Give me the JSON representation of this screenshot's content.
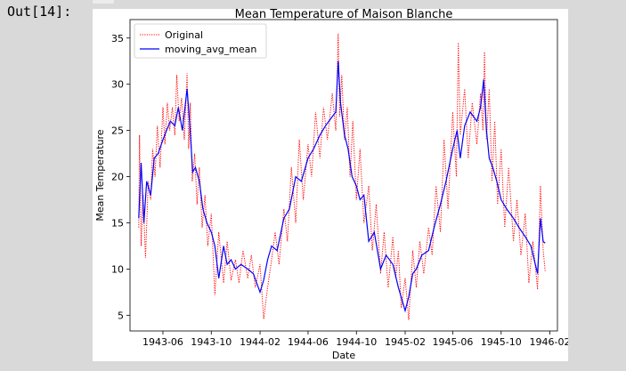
{
  "cell": {
    "output_prompt": "Out[14]:"
  },
  "colors": {
    "original": "#ff0000",
    "moving_avg": "#0000ff"
  },
  "chart_data": {
    "type": "line",
    "title": "Mean Temperature of Maison Blanche",
    "xlabel": "Date",
    "ylabel": "Mean Temperature",
    "xlim": [
      "1943-03-10",
      "1946-02-20"
    ],
    "ylim": [
      3.3,
      37.0
    ],
    "x_ticks": [
      "1943-06",
      "1943-10",
      "1944-02",
      "1944-06",
      "1944-10",
      "1945-02",
      "1945-06",
      "1945-10",
      "1946-02"
    ],
    "y_ticks": [
      5,
      10,
      15,
      20,
      25,
      30,
      35
    ],
    "legend": {
      "position": "upper-left",
      "entries": [
        "Original",
        "moving_avg_mean"
      ]
    },
    "grid": false,
    "series": [
      {
        "name": "Original",
        "style": "dotted",
        "color": "#ff0000",
        "x": [
          "1943-04-01",
          "1943-04-03",
          "1943-04-07",
          "1943-04-12",
          "1943-04-18",
          "1943-04-25",
          "1943-05-01",
          "1943-05-06",
          "1943-05-12",
          "1943-05-18",
          "1943-05-25",
          "1943-06-01",
          "1943-06-06",
          "1943-06-12",
          "1943-06-18",
          "1943-06-25",
          "1943-07-01",
          "1943-07-06",
          "1943-07-12",
          "1943-07-18",
          "1943-07-25",
          "1943-08-01",
          "1943-08-05",
          "1943-08-09",
          "1943-08-14",
          "1943-08-20",
          "1943-08-26",
          "1943-09-01",
          "1943-09-08",
          "1943-09-15",
          "1943-09-22",
          "1943-10-01",
          "1943-10-10",
          "1943-10-20",
          "1943-11-01",
          "1943-11-10",
          "1943-11-20",
          "1943-12-01",
          "1943-12-10",
          "1943-12-20",
          "1944-01-01",
          "1944-01-10",
          "1944-01-20",
          "1944-02-01",
          "1944-02-10",
          "1944-02-20",
          "1944-03-01",
          "1944-03-10",
          "1944-03-20",
          "1944-04-01",
          "1944-04-10",
          "1944-04-20",
          "1944-05-01",
          "1944-05-10",
          "1944-05-20",
          "1944-06-01",
          "1944-06-10",
          "1944-06-20",
          "1944-07-01",
          "1944-07-10",
          "1944-07-20",
          "1944-08-01",
          "1944-08-10",
          "1944-08-16",
          "1944-08-20",
          "1944-08-25",
          "1944-09-01",
          "1944-09-08",
          "1944-09-15",
          "1944-09-22",
          "1944-10-01",
          "1944-10-10",
          "1944-10-20",
          "1944-11-01",
          "1944-11-10",
          "1944-11-20",
          "1944-12-01",
          "1944-12-10",
          "1944-12-20",
          "1945-01-01",
          "1945-01-08",
          "1945-01-15",
          "1945-01-22",
          "1945-02-01",
          "1945-02-10",
          "1945-02-20",
          "1945-03-01",
          "1945-03-10",
          "1945-03-20",
          "1945-04-01",
          "1945-04-10",
          "1945-04-20",
          "1945-05-01",
          "1945-05-10",
          "1945-05-20",
          "1945-06-01",
          "1945-06-10",
          "1945-06-15",
          "1945-06-20",
          "1945-07-01",
          "1945-07-10",
          "1945-07-20",
          "1945-08-01",
          "1945-08-10",
          "1945-08-16",
          "1945-08-20",
          "1945-08-25",
          "1945-09-01",
          "1945-09-08",
          "1945-09-15",
          "1945-09-22",
          "1945-10-01",
          "1945-10-10",
          "1945-10-20",
          "1945-11-01",
          "1945-11-10",
          "1945-11-20",
          "1945-12-01",
          "1945-12-10",
          "1945-12-20",
          "1946-01-01",
          "1946-01-08",
          "1946-01-15",
          "1946-01-20"
        ],
        "values": [
          14.5,
          24.5,
          12.5,
          18.0,
          11.2,
          19.5,
          17.5,
          23.0,
          20.0,
          25.5,
          21.0,
          27.5,
          23.5,
          28.0,
          25.0,
          27.5,
          24.5,
          31.0,
          26.0,
          28.5,
          24.0,
          31.2,
          23.0,
          28.0,
          19.5,
          22.5,
          17.0,
          21.0,
          14.5,
          18.0,
          12.5,
          16.0,
          7.2,
          14.0,
          8.5,
          13.0,
          8.8,
          11.0,
          8.5,
          12.0,
          9.0,
          11.5,
          8.0,
          10.5,
          4.6,
          8.0,
          11.0,
          14.0,
          10.5,
          16.5,
          13.0,
          21.0,
          15.0,
          24.0,
          17.5,
          23.5,
          20.0,
          27.0,
          22.0,
          27.5,
          24.0,
          29.0,
          25.0,
          35.5,
          26.5,
          31.0,
          24.0,
          27.5,
          20.0,
          26.0,
          17.5,
          23.0,
          15.0,
          19.0,
          12.0,
          17.0,
          9.5,
          14.0,
          8.0,
          13.5,
          9.0,
          12.0,
          5.8,
          9.0,
          4.5,
          12.0,
          8.0,
          13.0,
          9.5,
          14.5,
          11.5,
          19.0,
          14.0,
          24.0,
          16.5,
          27.0,
          20.0,
          34.5,
          24.5,
          29.5,
          22.0,
          28.0,
          23.5,
          29.0,
          25.0,
          33.5,
          24.0,
          29.5,
          19.5,
          26.0,
          17.0,
          23.0,
          14.5,
          21.0,
          13.0,
          17.5,
          11.5,
          16.0,
          8.5,
          13.0,
          7.8,
          19.0,
          12.0,
          9.8
        ]
      },
      {
        "name": "moving_avg_mean",
        "style": "solid",
        "color": "#0000ff",
        "x": [
          "1943-04-01",
          "1943-04-07",
          "1943-04-14",
          "1943-04-21",
          "1943-05-01",
          "1943-05-10",
          "1943-05-20",
          "1943-06-01",
          "1943-06-10",
          "1943-06-20",
          "1943-07-01",
          "1943-07-10",
          "1943-07-20",
          "1943-08-01",
          "1943-08-08",
          "1943-08-15",
          "1943-08-22",
          "1943-09-01",
          "1943-09-10",
          "1943-09-20",
          "1943-10-01",
          "1943-10-10",
          "1943-10-20",
          "1943-11-01",
          "1943-11-10",
          "1943-11-20",
          "1943-12-01",
          "1943-12-15",
          "1944-01-01",
          "1944-01-15",
          "1944-02-01",
          "1944-02-10",
          "1944-02-20",
          "1944-03-01",
          "1944-03-15",
          "1944-04-01",
          "1944-04-15",
          "1944-05-01",
          "1944-05-15",
          "1944-06-01",
          "1944-06-15",
          "1944-07-01",
          "1944-07-15",
          "1944-08-01",
          "1944-08-10",
          "1944-08-16",
          "1944-08-22",
          "1944-09-01",
          "1944-09-10",
          "1944-09-20",
          "1944-10-01",
          "1944-10-10",
          "1944-10-20",
          "1944-11-01",
          "1944-11-15",
          "1944-12-01",
          "1944-12-15",
          "1945-01-01",
          "1945-01-15",
          "1945-02-01",
          "1945-02-10",
          "1945-02-20",
          "1945-03-01",
          "1945-03-15",
          "1945-04-01",
          "1945-04-15",
          "1945-05-01",
          "1945-05-15",
          "1945-06-01",
          "1945-06-12",
          "1945-06-20",
          "1945-07-01",
          "1945-07-15",
          "1945-08-01",
          "1945-08-10",
          "1945-08-18",
          "1945-08-25",
          "1945-09-01",
          "1945-09-10",
          "1945-09-20",
          "1945-10-01",
          "1945-10-15",
          "1945-11-01",
          "1945-11-15",
          "1945-12-01",
          "1945-12-15",
          "1946-01-01",
          "1946-01-08",
          "1946-01-15",
          "1946-01-20"
        ],
        "values": [
          15.5,
          21.5,
          15.0,
          19.5,
          18.0,
          22.0,
          22.5,
          24.0,
          25.0,
          26.0,
          25.5,
          27.5,
          25.0,
          29.5,
          25.5,
          20.5,
          21.0,
          19.5,
          16.5,
          15.0,
          14.0,
          12.5,
          9.0,
          12.5,
          10.5,
          11.0,
          10.0,
          10.5,
          10.0,
          9.5,
          7.5,
          8.8,
          11.0,
          12.5,
          12.0,
          15.5,
          16.5,
          20.0,
          19.5,
          22.0,
          23.0,
          24.5,
          25.5,
          26.5,
          27.0,
          32.5,
          28.0,
          24.5,
          23.0,
          20.0,
          19.0,
          17.5,
          18.0,
          13.0,
          14.0,
          10.0,
          11.5,
          10.5,
          8.0,
          5.5,
          7.0,
          9.5,
          10.0,
          11.5,
          12.0,
          14.5,
          17.0,
          19.5,
          23.0,
          25.0,
          22.0,
          25.5,
          27.0,
          26.0,
          27.5,
          30.5,
          25.0,
          22.0,
          21.0,
          19.5,
          17.5,
          16.5,
          15.5,
          14.5,
          13.5,
          12.5,
          9.5,
          15.5,
          13.0,
          12.8
        ]
      }
    ]
  }
}
